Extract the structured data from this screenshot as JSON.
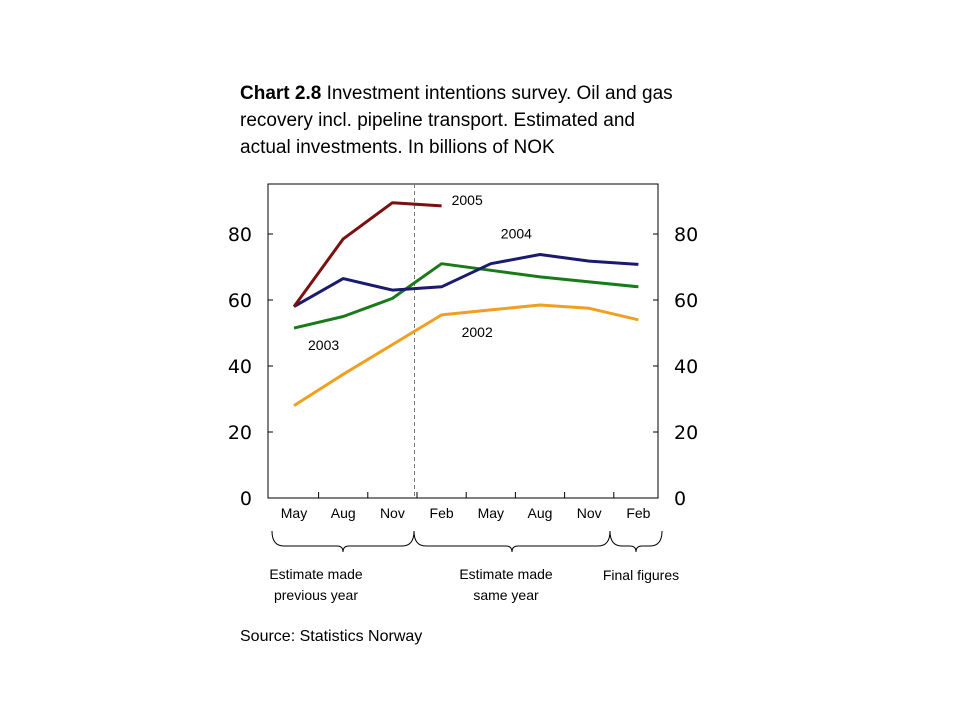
{
  "title": {
    "prefix": "Chart 2.8",
    "text": " Investment intentions survey. Oil and gas recovery incl. pipeline transport. Estimated and actual investments. In billions of NOK"
  },
  "source": "Source: Statistics Norway",
  "chart_data": {
    "type": "line",
    "x": [
      "May",
      "Aug",
      "Nov",
      "Feb",
      "May",
      "Aug",
      "Nov",
      "Feb"
    ],
    "ylim": [
      0,
      90
    ],
    "yticks": [
      0,
      20,
      40,
      60,
      80
    ],
    "grid": false,
    "series": [
      {
        "name": "2002",
        "color": "#f0a020",
        "values": [
          28,
          37.5,
          46.5,
          55.5,
          57,
          58.5,
          57.5,
          54
        ]
      },
      {
        "name": "2003",
        "color": "#1a7a1a",
        "values": [
          51.5,
          55,
          60.5,
          71,
          69,
          67,
          65.5,
          64
        ]
      },
      {
        "name": "2004",
        "color": "#1a1a6e",
        "values": [
          58,
          66.5,
          63,
          64,
          71,
          73.8,
          71.8,
          70.8
        ]
      },
      {
        "name": "2005",
        "color": "#7a1010",
        "values": [
          58,
          78.5,
          89.5,
          88.5,
          null,
          null,
          null,
          null
        ]
      }
    ],
    "groups": [
      {
        "line1": "Estimate made",
        "line2": "previous year"
      },
      {
        "line1": "Estimate made",
        "line2": "same year"
      },
      {
        "line1": "Final figures",
        "line2": ""
      }
    ]
  }
}
